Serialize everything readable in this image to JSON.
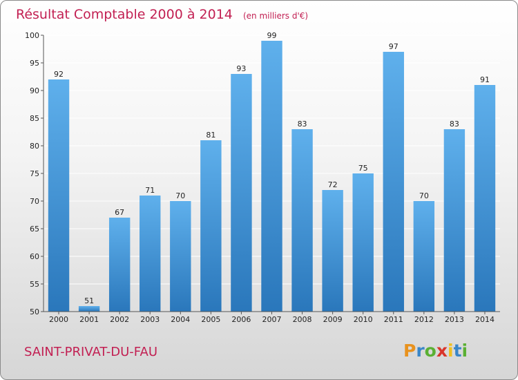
{
  "chart_data": {
    "type": "bar",
    "title": "Résultat Comptable 2000 à 2014",
    "subtitle": "(en milliers d'€)",
    "categories": [
      "2000",
      "2001",
      "2002",
      "2003",
      "2004",
      "2005",
      "2006",
      "2007",
      "2008",
      "2009",
      "2010",
      "2011",
      "2012",
      "2013",
      "2014"
    ],
    "values": [
      92,
      51,
      67,
      71,
      70,
      81,
      93,
      99,
      83,
      72,
      75,
      97,
      70,
      83,
      91
    ],
    "ylim": [
      50,
      100
    ],
    "yticks": [
      50,
      55,
      60,
      65,
      70,
      75,
      80,
      85,
      90,
      95,
      100
    ],
    "xlabel": "",
    "ylabel": "",
    "grid": true,
    "bar_color": "#3d8fd6",
    "title_color": "#c21f52"
  },
  "footer": {
    "commune": "SAINT-PRIVAT-DU-FAU",
    "logo_letters": [
      "P",
      "r",
      "o",
      "x",
      "i",
      "t",
      "i"
    ],
    "logo_colors": [
      "#e8921e",
      "#3a86c8",
      "#5ab033",
      "#d9352b",
      "#f0c020",
      "#3a86c8",
      "#5ab033"
    ]
  }
}
